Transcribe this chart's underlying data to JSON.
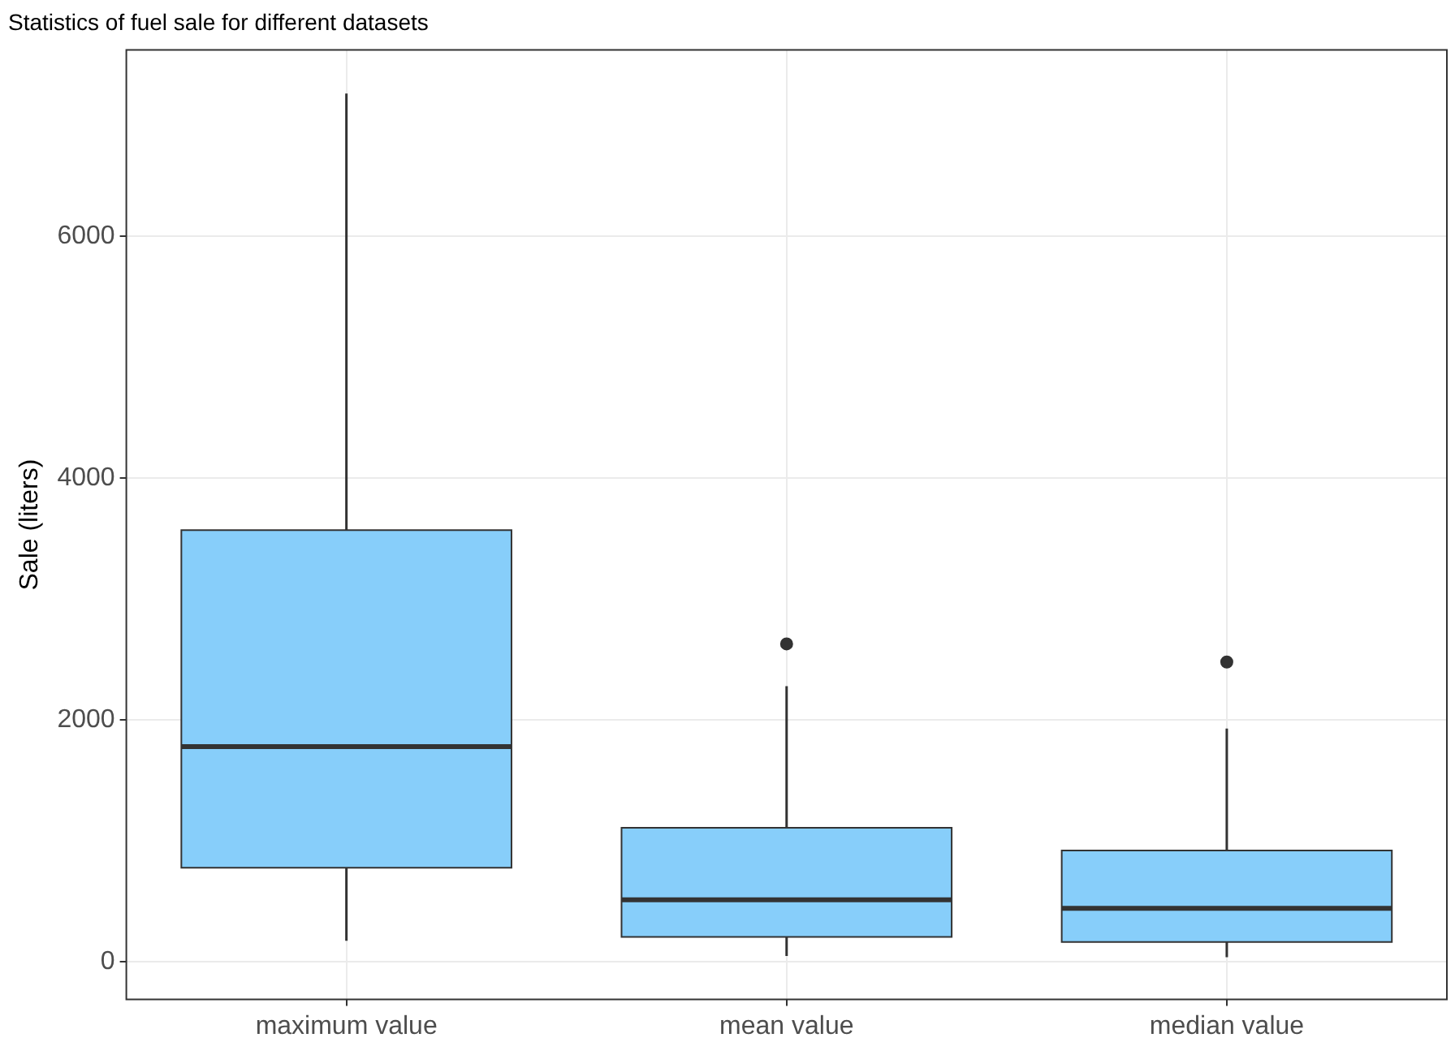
{
  "chart_data": {
    "type": "box",
    "title": "Statistics of fuel sale for different datasets",
    "ylabel": "Sale (liters)",
    "categories": [
      "maximum value",
      "mean value",
      "median value"
    ],
    "boxes": [
      {
        "low": 175,
        "q1": 780,
        "median": 1780,
        "q3": 3570,
        "high": 7180
      },
      {
        "low": 50,
        "q1": 207,
        "median": 515,
        "q3": 1110,
        "high": 2280,
        "outliers": [
          2630
        ]
      },
      {
        "low": 40,
        "q1": 166,
        "median": 443,
        "q3": 922,
        "high": 1930,
        "outliers": [
          2480
        ]
      }
    ],
    "color": "#87cefa",
    "ylim": [
      -310,
      7540
    ],
    "yticks": [
      0,
      2000,
      4000,
      6000
    ],
    "grid": true,
    "legend": false
  }
}
